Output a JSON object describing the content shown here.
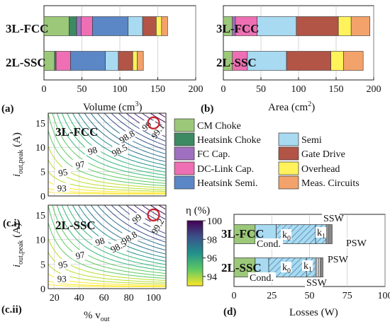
{
  "colors": {
    "cm_choke": "#9cc87a",
    "heatsink_choke": "#3c8a62",
    "fc_cap": "#a070c0",
    "dclink_cap": "#ee6fb3",
    "heatsink_semi": "#5b87c7",
    "semi": "#a8daf2",
    "gate_drive": "#b25446",
    "overhead": "#fff25a",
    "meas_circuits": "#f2a26a"
  },
  "legend": {
    "items": [
      {
        "key": "cm_choke",
        "label": "CM Choke"
      },
      {
        "key": "heatsink_choke",
        "label": "Heatsink Choke"
      },
      {
        "key": "fc_cap",
        "label": "FC Cap."
      },
      {
        "key": "dclink_cap",
        "label": "DC-Link Cap."
      },
      {
        "key": "heatsink_semi",
        "label": "Heatsink Semi."
      },
      {
        "key": "semi",
        "label": "Semi"
      },
      {
        "key": "gate_drive",
        "label": "Gate Drive"
      },
      {
        "key": "overhead",
        "label": "Overhead"
      },
      {
        "key": "meas_circuits",
        "label": "Meas. Circuits"
      }
    ]
  },
  "colorbar": {
    "title": "η (%)",
    "ticks": [
      100,
      98,
      96,
      94
    ],
    "range": [
      93,
      100
    ]
  },
  "chart_data": [
    {
      "panel": "(a)",
      "type": "bar",
      "orientation": "horizontal",
      "stacked": true,
      "xlabel": "Volume (cm³)",
      "xlim": [
        0,
        200
      ],
      "xticks": [
        0,
        50,
        100,
        150,
        200
      ],
      "categories": [
        "3L-FCC",
        "2L-SSC"
      ],
      "series": [
        {
          "name": "CM Choke",
          "values": [
            33,
            14
          ]
        },
        {
          "name": "Heatsink Choke",
          "values": [
            10,
            2
          ]
        },
        {
          "name": "FC Cap.",
          "values": [
            6,
            0
          ]
        },
        {
          "name": "DC-Link Cap.",
          "values": [
            15,
            19
          ]
        },
        {
          "name": "Heatsink Semi.",
          "values": [
            47,
            46
          ]
        },
        {
          "name": "Semi",
          "values": [
            19,
            17
          ]
        },
        {
          "name": "Gate Drive",
          "values": [
            18,
            19
          ]
        },
        {
          "name": "Overhead",
          "values": [
            7,
            6
          ]
        },
        {
          "name": "Meas. Circuits",
          "values": [
            8,
            8
          ]
        }
      ]
    },
    {
      "panel": "(b)",
      "type": "bar",
      "orientation": "horizontal",
      "stacked": true,
      "xlabel": "Area (cm²)",
      "xlim": [
        0,
        200
      ],
      "xticks": [
        0,
        50,
        100,
        150,
        200
      ],
      "categories": [
        "3L-FCC",
        "2L-SSC"
      ],
      "series": [
        {
          "name": "CM Choke",
          "values": [
            12,
            12
          ]
        },
        {
          "name": "Heatsink Choke",
          "values": [
            0,
            0
          ]
        },
        {
          "name": "FC Cap.",
          "values": [
            4,
            0
          ]
        },
        {
          "name": "DC-Link Cap.",
          "values": [
            29,
            20
          ]
        },
        {
          "name": "Heatsink Semi.",
          "values": [
            0,
            0
          ]
        },
        {
          "name": "Semi",
          "values": [
            52,
            52
          ]
        },
        {
          "name": "Gate Drive",
          "values": [
            56,
            59
          ]
        },
        {
          "name": "Overhead",
          "values": [
            17,
            17
          ]
        },
        {
          "name": "Meas. Circuits",
          "values": [
            25,
            26
          ]
        }
      ]
    },
    {
      "panel": "(c.i)",
      "type": "contour",
      "title": "3L-FCC",
      "xlabel": "% v_out",
      "ylabel": "i_out,peak (A)",
      "xlim": [
        15,
        110
      ],
      "ylim": [
        0,
        17
      ],
      "xticks": [
        20,
        40,
        60,
        80,
        100
      ],
      "yticks": [
        0,
        5,
        10,
        15
      ],
      "contour_labels": [
        "93",
        "95",
        "97",
        "98",
        "98.5",
        "98.8",
        "99",
        "99.1"
      ],
      "operating_point": {
        "x": 100,
        "y": 15
      }
    },
    {
      "panel": "(c.ii)",
      "type": "contour",
      "title": "2L-SSC",
      "xlabel": "% v_out",
      "ylabel": "i_out,peak (A)",
      "xlim": [
        15,
        110
      ],
      "ylim": [
        0,
        17
      ],
      "xticks": [
        20,
        40,
        60,
        80,
        100
      ],
      "yticks": [
        0,
        5,
        10,
        15
      ],
      "contour_labels": [
        "93",
        "95",
        "97",
        "98",
        "98.5",
        "98.8",
        "99",
        "99.2"
      ],
      "operating_point": {
        "x": 100,
        "y": 15
      }
    },
    {
      "panel": "(d)",
      "type": "bar",
      "orientation": "horizontal",
      "stacked": true,
      "xlabel": "Losses (W)",
      "xlim": [
        0,
        100
      ],
      "xticks": [
        0,
        25,
        50,
        75,
        100
      ],
      "categories": [
        "3L-FCC",
        "2L-SSC"
      ],
      "series": [
        {
          "name": "CM Choke",
          "values": [
            14,
            14
          ]
        },
        {
          "name": "Cond.",
          "values": [
            14,
            9
          ]
        },
        {
          "name": "k0",
          "values": [
            26,
            25
          ]
        },
        {
          "name": "k1",
          "values": [
            7,
            6
          ]
        },
        {
          "name": "SSW",
          "values": [
            2,
            3
          ]
        },
        {
          "name": "PSW",
          "values": [
            2,
            2
          ]
        }
      ],
      "labels": {
        "cond": "Cond.",
        "k0": "k",
        "k0_sub": "0",
        "k1": "k",
        "k1_sub": "1",
        "ssw": "SSW",
        "psw": "PSW"
      }
    }
  ],
  "text": {
    "panel_a": "(a)",
    "panel_b": "(b)",
    "panel_ci": "(c.i)",
    "panel_cii": "(c.ii)",
    "panel_d": "(d)",
    "sys_fcc": "3L-FCC",
    "sys_ssc": "2L-SSC",
    "xlabel_a": "Volume (cm",
    "xlabel_a_sup": "3",
    "xlabel_b": "Area (cm",
    "xlabel_b_sup": "2",
    "xlabel_paren": ")",
    "xlabel_c": "% v",
    "xlabel_c_sub": "out",
    "ylabel_c": "i",
    "ylabel_c_sub": "out,peak",
    "ylabel_c_unit": " (A)",
    "xlabel_d": "Losses (W)"
  }
}
